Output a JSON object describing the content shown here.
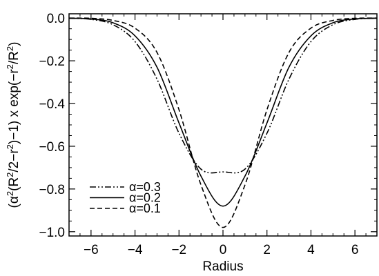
{
  "chart_data": {
    "type": "line",
    "xlabel": "Radius",
    "ylabel_parts": [
      "(α",
      "2",
      "(R",
      "2",
      "/2−r",
      "2",
      ")−1) x exp(−r",
      "2",
      "/R",
      "2",
      ")"
    ],
    "xlim": [
      -7,
      7
    ],
    "ylim": [
      -1.02,
      0.02
    ],
    "xticks": [
      -6,
      -4,
      -2,
      0,
      2,
      4,
      6
    ],
    "xtick_labels": [
      "−6",
      "−4",
      "−2",
      "0",
      "2",
      "4",
      "6"
    ],
    "yticks": [
      0.0,
      -0.2,
      -0.4,
      -0.6,
      -0.8,
      -1.0
    ],
    "ytick_labels": [
      "0.0",
      "−0.2",
      "−0.4",
      "−0.6",
      "−0.8",
      "−1.0"
    ],
    "legend": {
      "placement": "bottom-left"
    },
    "grid": false,
    "series": [
      {
        "name": "α=0.3",
        "style": "dash-dot-dot",
        "x": [
          -7,
          -6,
          -5,
          -4,
          -3,
          -2,
          -1,
          0,
          1,
          2,
          3,
          4,
          5,
          6,
          7
        ],
        "y": [
          -0.001,
          -0.006,
          -0.031,
          -0.11,
          -0.286,
          -0.539,
          -0.707,
          -0.72,
          -0.707,
          -0.539,
          -0.286,
          -0.11,
          -0.031,
          -0.006,
          -0.001
        ]
      },
      {
        "name": "α=0.2",
        "style": "solid",
        "x": [
          -7,
          -6,
          -5,
          -4,
          -3,
          -2,
          -1,
          0,
          1,
          2,
          3,
          4,
          5,
          6,
          7
        ],
        "y": [
          -0.001,
          -0.004,
          -0.022,
          -0.083,
          -0.23,
          -0.491,
          -0.74,
          -0.88,
          -0.74,
          -0.491,
          -0.23,
          -0.083,
          -0.022,
          -0.004,
          -0.001
        ]
      },
      {
        "name": "α=0.1",
        "style": "dashed",
        "x": [
          -7,
          -6,
          -5,
          -4,
          -3,
          -2,
          -1,
          0,
          1,
          2,
          3,
          4,
          5,
          6,
          7
        ],
        "y": [
          -0.0,
          -0.001,
          -0.011,
          -0.047,
          -0.161,
          -0.429,
          -0.781,
          -0.98,
          -0.781,
          -0.429,
          -0.161,
          -0.047,
          -0.011,
          -0.001,
          -0.0
        ]
      }
    ]
  }
}
